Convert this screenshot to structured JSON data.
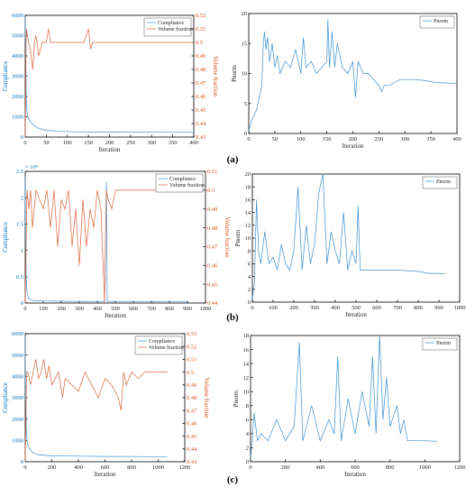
{
  "panel_labels": [
    "(a)",
    "(b)",
    "(c)"
  ],
  "chart_data": [
    {
      "type": "line",
      "id": "a-left",
      "xlabel": "Iteration",
      "ylabel": "Compliance",
      "y2label": "Volume fraction",
      "xlim": [
        0,
        400
      ],
      "ylim": [
        0,
        6000
      ],
      "y2lim": [
        0.43,
        0.52
      ],
      "xticks": [
        "0",
        "50",
        "100",
        "150",
        "200",
        "250",
        "300",
        "350",
        "400"
      ],
      "yticks": [
        "0",
        "1000",
        "2000",
        "3000",
        "4000",
        "5000",
        "6000"
      ],
      "y2ticks": [
        "0.43",
        "0.44",
        "0.45",
        "0.46",
        "0.47",
        "0.48",
        "0.49",
        "0.5",
        "0.51",
        "0.52"
      ],
      "legend": [
        "Compliance",
        "Volume fraction"
      ],
      "legend_position": "top-right",
      "series": [
        {
          "name": "Compliance",
          "axis": "left",
          "x": [
            0,
            1,
            2,
            3,
            5,
            8,
            12,
            20,
            30,
            50,
            80,
            120,
            200,
            300,
            400
          ],
          "y": [
            5900,
            4200,
            2500,
            1600,
            1100,
            900,
            750,
            580,
            450,
            330,
            280,
            260,
            240,
            235,
            230
          ]
        },
        {
          "name": "Volume fraction",
          "axis": "right",
          "x": [
            0,
            1,
            2,
            3,
            5,
            8,
            12,
            18,
            22,
            25,
            28,
            32,
            40,
            50,
            55,
            60,
            80,
            100,
            120,
            140,
            150,
            155,
            160,
            180,
            200,
            250,
            300,
            350,
            400
          ],
          "y": [
            0.43,
            0.46,
            0.5,
            0.51,
            0.505,
            0.5,
            0.495,
            0.48,
            0.5,
            0.505,
            0.5,
            0.49,
            0.5,
            0.5,
            0.51,
            0.5,
            0.5,
            0.5,
            0.5,
            0.5,
            0.51,
            0.495,
            0.5,
            0.5,
            0.5,
            0.5,
            0.5,
            0.5,
            0.5
          ]
        }
      ]
    },
    {
      "type": "line",
      "id": "a-right",
      "xlabel": "Iteration",
      "ylabel": "Pnorm",
      "xlim": [
        0,
        400
      ],
      "ylim": [
        0,
        20
      ],
      "xticks": [
        "0",
        "50",
        "100",
        "150",
        "200",
        "250",
        "300",
        "350",
        "400"
      ],
      "yticks": [
        "0",
        "5",
        "10",
        "15",
        "20"
      ],
      "legend": [
        "Pnorm"
      ],
      "legend_position": "top-right",
      "series": [
        {
          "name": "Pnorm",
          "x": [
            0,
            5,
            10,
            15,
            20,
            25,
            28,
            30,
            33,
            36,
            40,
            45,
            50,
            55,
            60,
            70,
            80,
            90,
            100,
            105,
            110,
            120,
            130,
            140,
            150,
            152,
            155,
            160,
            165,
            170,
            180,
            190,
            200,
            205,
            210,
            215,
            220,
            230,
            240,
            250,
            255,
            260,
            270,
            280,
            290,
            300,
            320,
            340,
            360,
            380,
            400
          ],
          "y": [
            0.5,
            2,
            3,
            4,
            6,
            8,
            15,
            17,
            14,
            16,
            12,
            15,
            11,
            13,
            10,
            12,
            11,
            14,
            10,
            16,
            11,
            12,
            10,
            11,
            12,
            19,
            11,
            17,
            11,
            15,
            11,
            10,
            12,
            6,
            12,
            11,
            10,
            10,
            9,
            8,
            7,
            8,
            8,
            8.5,
            9,
            9,
            9,
            8.8,
            8.5,
            8.4,
            8.3
          ]
        }
      ]
    },
    {
      "type": "line",
      "id": "b-left",
      "xlabel": "Iteration",
      "ylabel": "Compliance",
      "y2label": "Volume fraction",
      "yexponent": "× 10⁴",
      "xlim": [
        0,
        1000
      ],
      "ylim": [
        0,
        2.5
      ],
      "y2lim": [
        0.44,
        0.51
      ],
      "xticks": [
        "0",
        "100",
        "200",
        "300",
        "400",
        "500",
        "600",
        "700",
        "800",
        "900",
        "1000"
      ],
      "yticks": [
        "0",
        "0.5",
        "1",
        "1.5",
        "2",
        "2.5"
      ],
      "y2ticks": [
        "0.44",
        "0.45",
        "0.46",
        "0.47",
        "0.48",
        "0.49",
        "0.5",
        "0.51"
      ],
      "legend": [
        "Compliance",
        "Volume fraction"
      ],
      "legend_position": "top-right",
      "series": [
        {
          "name": "Compliance",
          "axis": "left",
          "x": [
            0,
            2,
            5,
            10,
            20,
            40,
            100,
            200,
            300,
            440,
            450,
            455,
            460,
            500,
            700,
            900
          ],
          "y": [
            2.4,
            1.2,
            0.5,
            0.2,
            0.08,
            0.05,
            0.04,
            0.035,
            0.03,
            0.03,
            2.3,
            0.03,
            0.03,
            0.03,
            0.03,
            0.03
          ]
        },
        {
          "name": "Volume fraction",
          "axis": "right",
          "x": [
            0,
            10,
            20,
            30,
            40,
            60,
            80,
            100,
            120,
            140,
            160,
            180,
            200,
            220,
            240,
            260,
            280,
            300,
            320,
            340,
            360,
            380,
            400,
            420,
            440,
            450,
            460,
            480,
            500,
            520,
            540,
            600,
            700,
            800,
            900
          ],
          "y": [
            0.44,
            0.5,
            0.49,
            0.5,
            0.48,
            0.5,
            0.495,
            0.49,
            0.5,
            0.48,
            0.5,
            0.47,
            0.495,
            0.49,
            0.5,
            0.47,
            0.49,
            0.46,
            0.495,
            0.47,
            0.49,
            0.48,
            0.5,
            0.49,
            0.44,
            0.5,
            0.495,
            0.49,
            0.5,
            0.5,
            0.5,
            0.5,
            0.5,
            0.5,
            0.5
          ]
        }
      ]
    },
    {
      "type": "line",
      "id": "b-right",
      "xlabel": "Iteration",
      "ylabel": "Pnorm",
      "xlim": [
        0,
        1000
      ],
      "ylim": [
        0,
        20
      ],
      "xticks": [
        "0",
        "100",
        "200",
        "300",
        "400",
        "500",
        "600",
        "700",
        "800",
        "900",
        "1000"
      ],
      "yticks": [
        "0",
        "2",
        "4",
        "6",
        "8",
        "10",
        "12",
        "14",
        "16",
        "18",
        "20"
      ],
      "legend": [
        "Pnorm"
      ],
      "legend_position": "top-right",
      "series": [
        {
          "name": "Pnorm",
          "x": [
            0,
            10,
            20,
            30,
            40,
            60,
            80,
            100,
            120,
            140,
            160,
            180,
            200,
            220,
            240,
            260,
            280,
            300,
            320,
            340,
            360,
            380,
            400,
            420,
            440,
            460,
            480,
            500,
            510,
            520,
            540,
            600,
            700,
            800,
            850,
            900,
            930
          ],
          "y": [
            0.5,
            3,
            16,
            8,
            6,
            11,
            6,
            7,
            5,
            9,
            6,
            5,
            8,
            18,
            5,
            12,
            6,
            9,
            17,
            20,
            6,
            11,
            8,
            6,
            14,
            5,
            8,
            6,
            15,
            5,
            5,
            5,
            5,
            4.8,
            4.5,
            4.5,
            4.4
          ]
        }
      ]
    },
    {
      "type": "line",
      "id": "c-left",
      "xlabel": "Iteration",
      "ylabel": "Compliance",
      "y2label": "Volume fraction",
      "xlim": [
        0,
        1200
      ],
      "ylim": [
        0,
        6000
      ],
      "y2lim": [
        0.43,
        0.53
      ],
      "xticks": [
        "0",
        "200",
        "400",
        "600",
        "800",
        "1000",
        "1200"
      ],
      "yticks": [
        "0",
        "1000",
        "2000",
        "3000",
        "4000",
        "5000",
        "6000"
      ],
      "y2ticks": [
        "0.43",
        "0.44",
        "0.45",
        "0.46",
        "0.47",
        "0.48",
        "0.49",
        "0.5",
        "0.51",
        "0.52",
        "0.53"
      ],
      "legend": [
        "Compliance",
        "Volume fraction"
      ],
      "legend_position": "top-right",
      "series": [
        {
          "name": "Compliance",
          "axis": "left",
          "x": [
            0,
            3,
            8,
            15,
            30,
            60,
            100,
            200,
            400,
            600,
            800,
            1000,
            1070
          ],
          "y": [
            5900,
            3000,
            1500,
            900,
            600,
            400,
            320,
            280,
            260,
            250,
            245,
            240,
            240
          ]
        },
        {
          "name": "Volume fraction",
          "axis": "right",
          "x": [
            0,
            10,
            20,
            40,
            60,
            80,
            100,
            120,
            140,
            160,
            180,
            200,
            250,
            280,
            300,
            350,
            400,
            450,
            500,
            550,
            600,
            650,
            700,
            720,
            740,
            760,
            800,
            850,
            900,
            1000,
            1070
          ],
          "y": [
            0.43,
            0.5,
            0.5,
            0.49,
            0.5,
            0.51,
            0.495,
            0.5,
            0.51,
            0.495,
            0.505,
            0.49,
            0.5,
            0.48,
            0.495,
            0.49,
            0.485,
            0.5,
            0.49,
            0.48,
            0.495,
            0.49,
            0.48,
            0.47,
            0.5,
            0.49,
            0.5,
            0.495,
            0.5,
            0.5,
            0.5
          ]
        }
      ]
    },
    {
      "type": "line",
      "id": "c-right",
      "xlabel": "Iteration",
      "ylabel": "Pnorm",
      "xlim": [
        0,
        1200
      ],
      "ylim": [
        0,
        18
      ],
      "xticks": [
        "0",
        "200",
        "400",
        "600",
        "800",
        "1000",
        "1200"
      ],
      "yticks": [
        "0",
        "2",
        "4",
        "6",
        "8",
        "10",
        "12",
        "14",
        "16",
        "18"
      ],
      "legend": [
        "Pnorm"
      ],
      "legend_position": "top-right",
      "series": [
        {
          "name": "Pnorm",
          "x": [
            0,
            10,
            20,
            40,
            60,
            100,
            150,
            200,
            250,
            280,
            300,
            350,
            400,
            450,
            480,
            500,
            520,
            560,
            600,
            640,
            680,
            700,
            720,
            740,
            760,
            780,
            800,
            840,
            860,
            880,
            900,
            950,
            1000,
            1070
          ],
          "y": [
            0.5,
            3,
            7,
            3,
            4,
            3,
            6,
            3,
            5,
            17,
            3,
            8,
            3,
            6,
            4,
            15,
            3,
            9,
            4,
            10,
            5,
            15,
            4,
            18,
            6,
            12,
            5,
            8,
            4,
            6,
            3,
            3,
            3,
            2.9
          ]
        }
      ]
    }
  ]
}
